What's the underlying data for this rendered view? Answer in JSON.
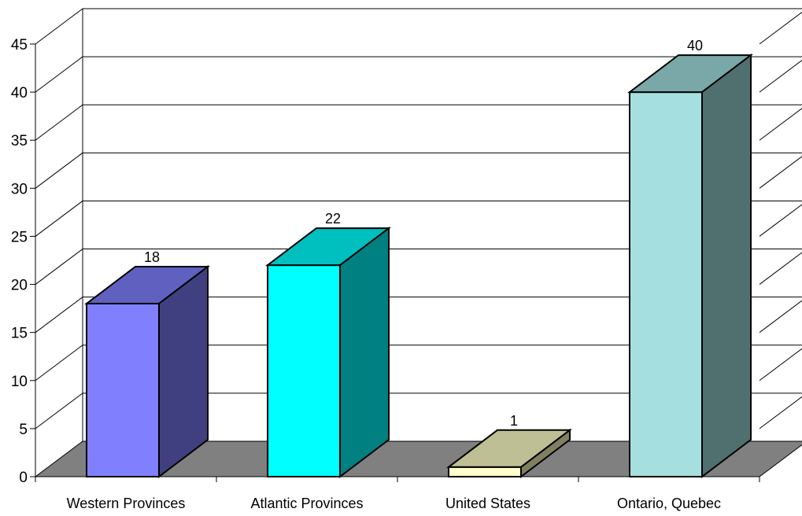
{
  "chart_data": {
    "type": "bar",
    "categories": [
      "Western Provinces",
      "Atlantic Provinces",
      "United States",
      "Ontario, Quebec"
    ],
    "values": [
      18,
      22,
      1,
      40
    ],
    "data_labels": [
      "18",
      "22",
      "1",
      "40"
    ],
    "ylim": [
      0,
      45
    ],
    "y_ticks": [
      0,
      5,
      10,
      15,
      20,
      25,
      30,
      35,
      40,
      45
    ],
    "y_tick_labels": [
      "0",
      "5",
      "10",
      "15",
      "20",
      "25",
      "30",
      "35",
      "40",
      "45"
    ],
    "grid": true,
    "legend": "none",
    "style": "3d-column",
    "colors": {
      "front": [
        "#8080ff",
        "#00ffff",
        "#ffffcc",
        "#a6dfdf"
      ],
      "top": [
        "#6060c0",
        "#00bfbf",
        "#bfbf95",
        "#7aa8a8"
      ],
      "side": [
        "#404080",
        "#008080",
        "#808060",
        "#507070"
      ],
      "floor": "#808080"
    }
  }
}
